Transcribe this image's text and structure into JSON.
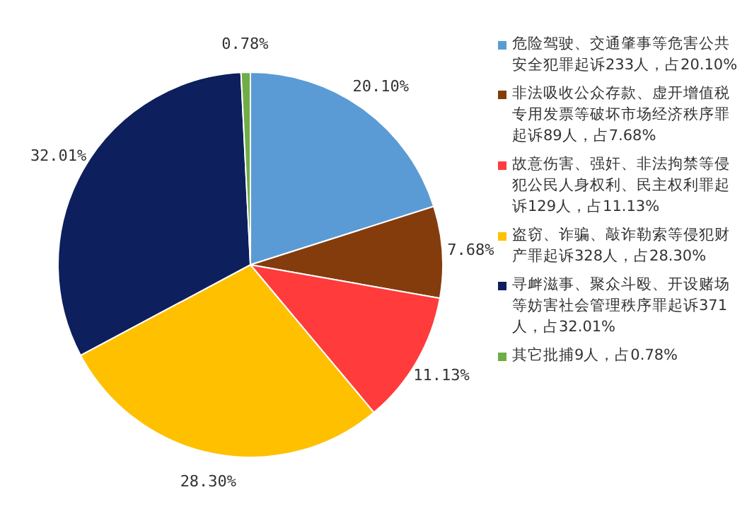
{
  "chart_data": {
    "type": "pie",
    "categories": [
      "危险驾驶、交通肇事等危害公共安全犯罪起诉233人，占20.10%",
      "非法吸收公众存款、虚开增值税专用发票等破坏市场经济秩序罪起诉89人，占7.68%",
      "故意伤害、强奸、非法拘禁等侵犯公民人身权利、民主权利罪起诉129人，占11.13%",
      "盗窃、诈骗、敲诈勒索等侵犯财产罪起诉328人，占28.30%",
      "寻衅滋事、聚众斗殴、开设赌场等妨害社会管理秩序罪起诉371人，占32.01%",
      "其它批捕9人，占0.78%"
    ],
    "values": [
      20.1,
      7.68,
      11.13,
      28.3,
      32.01,
      0.78
    ],
    "value_labels": [
      "20.10%",
      "7.68%",
      "11.13%",
      "28.30%",
      "32.01%",
      "0.78%"
    ],
    "colors": [
      "#5b9bd5",
      "#843c0c",
      "#ff3b3b",
      "#ffc000",
      "#0d1f5c",
      "#70ad47"
    ],
    "legend": "right"
  }
}
